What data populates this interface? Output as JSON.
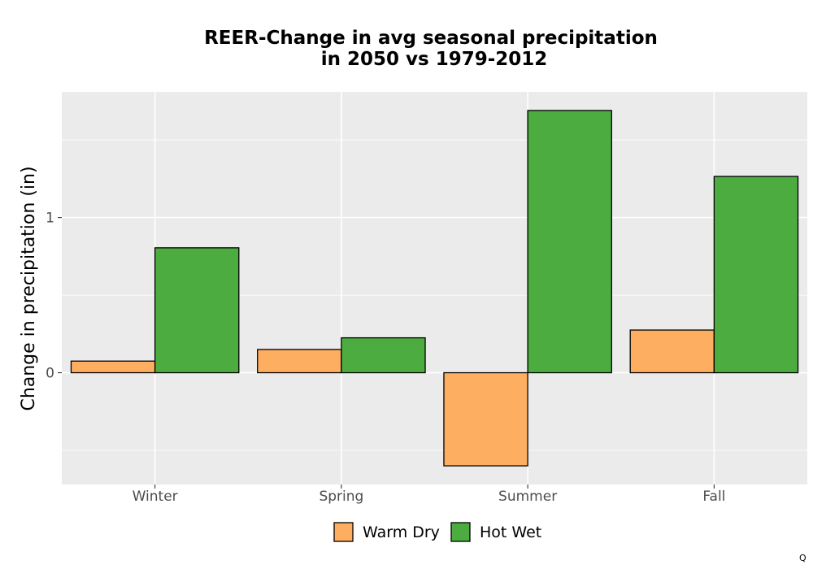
{
  "chart_data": {
    "type": "bar",
    "title": [
      "REER-Change in avg seasonal precipitation",
      "in 2050 vs 1979-2012"
    ],
    "xlabel": "",
    "ylabel": "Change in precipitation (in)",
    "categories": [
      "Winter",
      "Spring",
      "Summer",
      "Fall"
    ],
    "series": [
      {
        "name": "Warm Dry",
        "color": "#FDAE61",
        "values": [
          0.075,
          0.15,
          -0.6,
          0.275
        ]
      },
      {
        "name": "Hot Wet",
        "color": "#4DAC3F",
        "values": [
          0.805,
          0.225,
          1.69,
          1.265
        ]
      }
    ],
    "yticks": [
      0,
      1
    ],
    "ylim": [
      -0.72,
      1.81
    ],
    "grid": true,
    "legend_position": "bottom",
    "panel_background": "#EBEBEB"
  },
  "corner_mark": "Q"
}
